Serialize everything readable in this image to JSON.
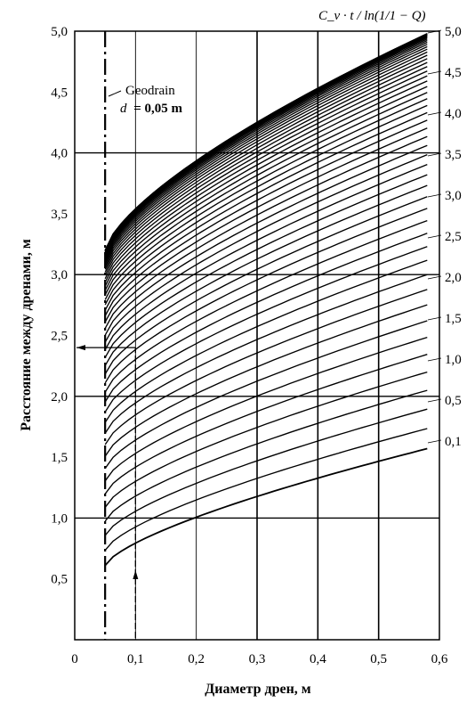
{
  "chart_data": {
    "type": "line",
    "title": "C_v · t / ln(1/1 − Q)",
    "xlabel": "Диаметр дрен, м",
    "ylabel": "Расстояние между дренами, м",
    "xlim": [
      0,
      0.6
    ],
    "ylim": [
      0,
      5.0
    ],
    "x_ticks": [
      "0",
      "0,1",
      "0,2",
      "0,3",
      "0,4",
      "0,5",
      "0,6"
    ],
    "y_ticks": [
      "0,5",
      "1,0",
      "1,5",
      "2,0",
      "2,5",
      "3,0",
      "3,5",
      "4,0",
      "4,5",
      "5,0"
    ],
    "grid": true,
    "curve_x_range": [
      0.05,
      0.58
    ],
    "param_labels": [
      "0,1",
      "0,5",
      "1,0",
      "1,5",
      "2,0",
      "2,5",
      "3,0",
      "3,5",
      "4,0",
      "4,5",
      "5,0"
    ],
    "series_summary": [
      {
        "param": "0,1",
        "start_y": 0.61,
        "end_y": 1.57
      },
      {
        "param": "0,5",
        "start_y": 1.45,
        "end_y": 3.05
      },
      {
        "param": "1,0",
        "start_y": 2.0,
        "end_y": 3.55
      },
      {
        "param": "1,5",
        "start_y": 2.35,
        "end_y": 3.9
      },
      {
        "param": "2,0",
        "start_y": 2.55,
        "end_y": 4.15
      },
      {
        "param": "2,5",
        "start_y": 2.72,
        "end_y": 4.36
      },
      {
        "param": "3,0",
        "start_y": 2.86,
        "end_y": 4.54
      },
      {
        "param": "3,5",
        "start_y": 2.97,
        "end_y": 4.68
      },
      {
        "param": "4,0",
        "start_y": 3.06,
        "end_y": 4.8
      },
      {
        "param": "4,5",
        "start_y": 3.14,
        "end_y": 4.9
      },
      {
        "param": "5,0",
        "start_y": 3.2,
        "end_y": 4.98
      }
    ],
    "annotation": {
      "name": "Geodrain",
      "formula_var": "d",
      "formula_val": "= 0,05 m",
      "drain_x": 0.05
    },
    "example": {
      "x": 0.1,
      "y": 2.4
    }
  }
}
